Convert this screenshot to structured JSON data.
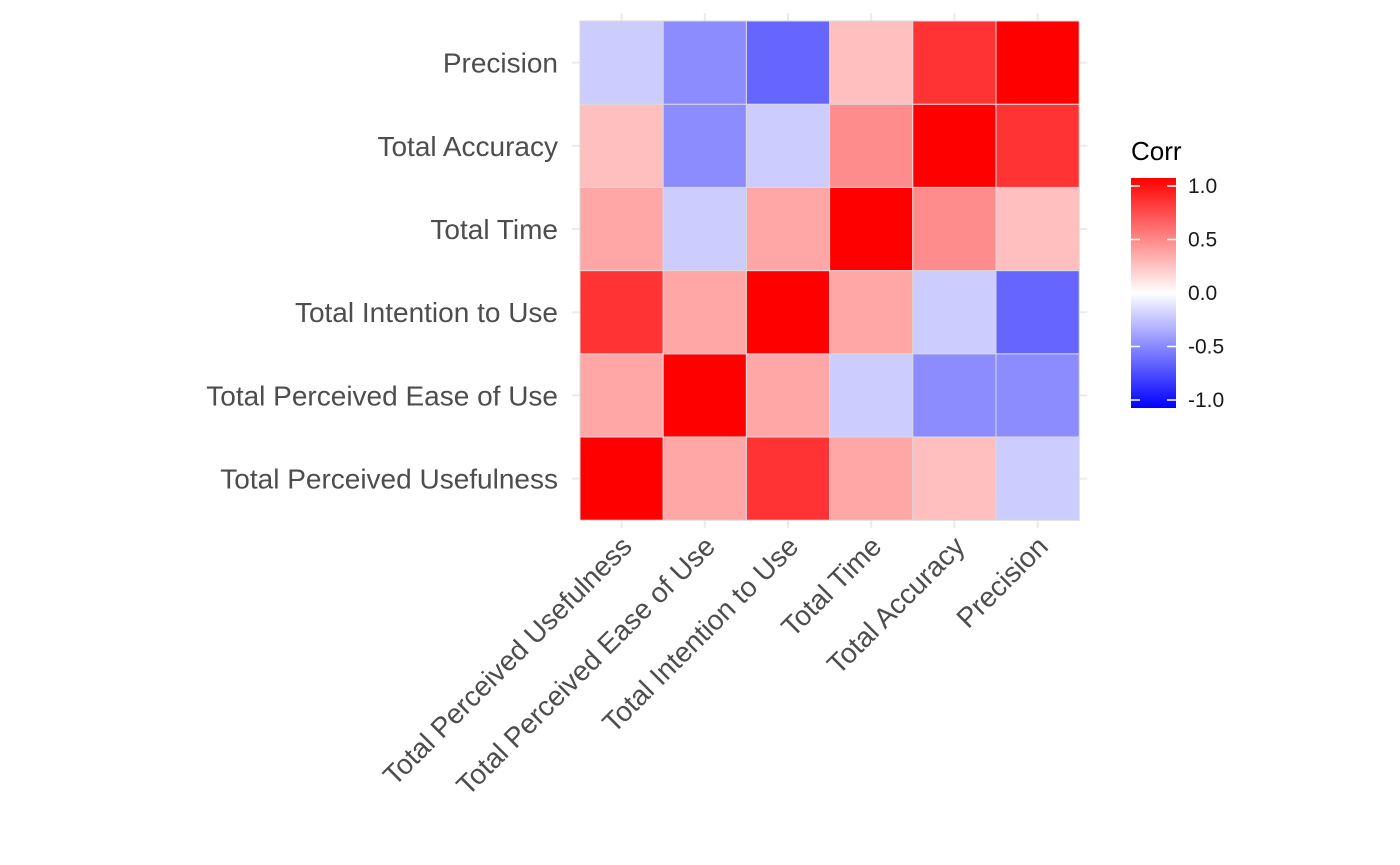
{
  "chart_data": {
    "type": "heatmap",
    "title": "",
    "xlabel": "",
    "ylabel": "",
    "variables": [
      "Total Perceived Usefulness",
      "Total Perceived Ease of Use",
      "Total Intention to Use",
      "Total Time",
      "Total Accuracy",
      "Precision"
    ],
    "matrix": [
      [
        1.0,
        0.35,
        0.8,
        0.35,
        0.25,
        -0.2
      ],
      [
        0.35,
        1.0,
        0.35,
        -0.2,
        -0.45,
        -0.45
      ],
      [
        0.8,
        0.35,
        1.0,
        0.35,
        -0.2,
        -0.6
      ],
      [
        0.35,
        -0.2,
        0.35,
        1.0,
        0.45,
        0.25
      ],
      [
        0.25,
        -0.45,
        -0.2,
        0.45,
        1.0,
        0.8
      ],
      [
        -0.2,
        -0.45,
        -0.6,
        0.25,
        0.8,
        1.0
      ]
    ],
    "color_scale": {
      "low": "#0000FF",
      "mid": "#FFFFFF",
      "high": "#FF0000",
      "limits": [
        -1.0,
        1.0
      ]
    },
    "legend": {
      "title": "Corr",
      "ticks": [
        "1.0",
        "0.5",
        "0.0",
        "-0.5",
        "-1.0"
      ],
      "tick_values": [
        1.0,
        0.5,
        0.0,
        -0.5,
        -1.0
      ],
      "position": "right"
    },
    "grid": true,
    "grid_color": "#ebebeb",
    "tile_border_color": "#d9d9d9"
  }
}
